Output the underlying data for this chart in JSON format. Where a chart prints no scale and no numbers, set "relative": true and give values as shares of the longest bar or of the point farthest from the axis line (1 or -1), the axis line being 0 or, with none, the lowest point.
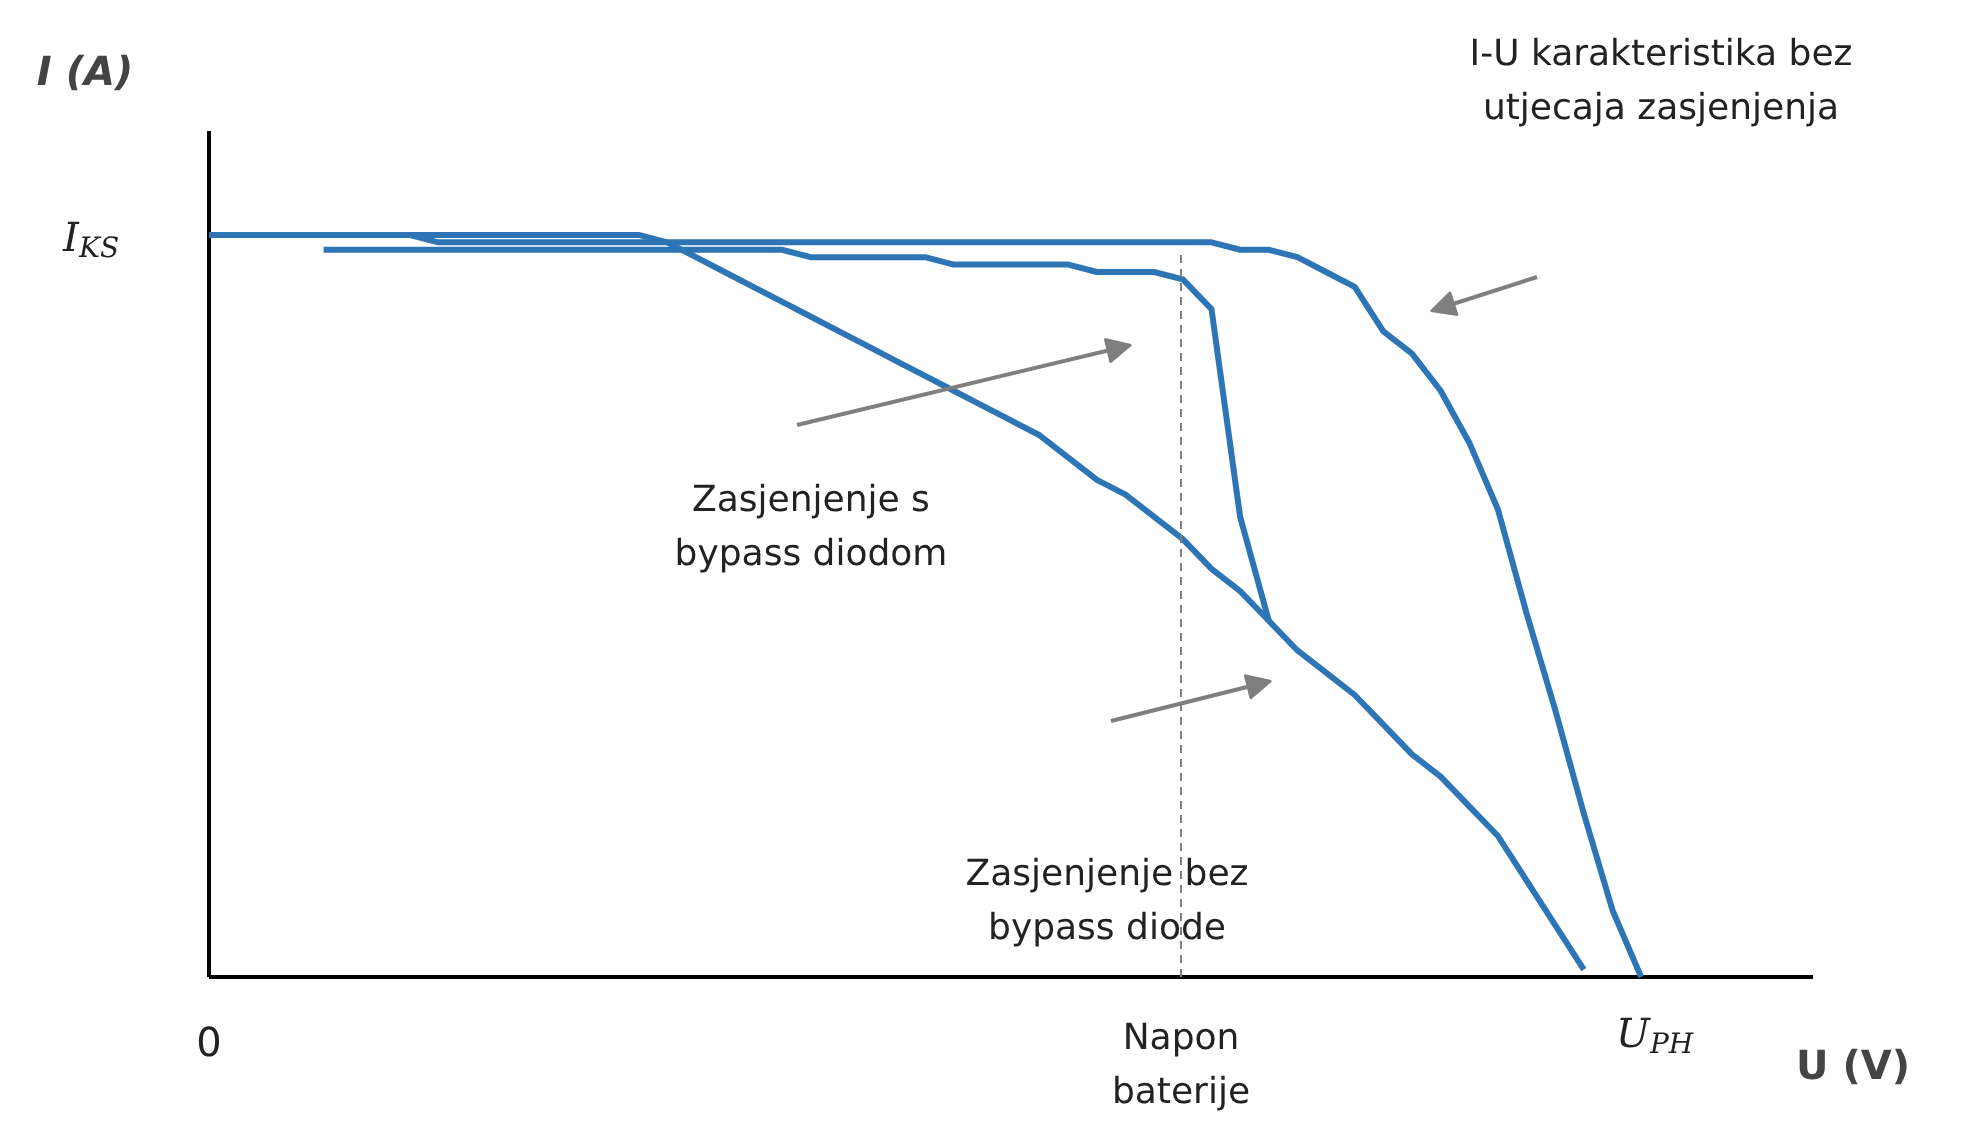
{
  "chart_data": {
    "type": "line",
    "relative": true,
    "xlabel": "U (V)",
    "ylabel": "I (A)",
    "categories": [
      null,
      null,
      null,
      null,
      null,
      null,
      null,
      null,
      null,
      null,
      null,
      null,
      null,
      null,
      null,
      null,
      null,
      null,
      null,
      null,
      null,
      null,
      null,
      null,
      null,
      null,
      null,
      null,
      null,
      null,
      null,
      null,
      null,
      null,
      null,
      null,
      null,
      null,
      null,
      null,
      null,
      null,
      null,
      null,
      null,
      null,
      null,
      null,
      null,
      null,
      null,
      null,
      null,
      null,
      null,
      null,
      null
    ],
    "series": [
      {
        "color": "#2e75b6",
        "values": [
          1,
          1,
          1,
          1,
          1,
          1,
          1,
          1,
          1,
          1,
          1,
          1,
          1,
          1,
          1,
          1,
          0.99,
          0.99,
          0.99,
          0.99,
          0.99,
          0.99,
          0.99,
          0.99,
          0.99,
          0.99,
          0.99,
          0.99,
          0.99,
          0.99,
          0.99,
          0.99,
          0.99,
          0.99,
          0.99,
          0.99,
          0.98,
          0.98,
          0.97,
          0.95,
          0.93,
          0.87,
          0.84,
          0.79,
          0.72,
          0.63,
          0.49,
          0.36,
          0.22,
          0.09,
          0,
          null,
          null,
          null,
          null,
          null,
          null
        ]
      },
      {
        "color": "#2e75b6",
        "values": [
          null,
          null,
          null,
          null,
          0.98,
          0.98,
          0.98,
          0.98,
          0.98,
          0.98,
          0.98,
          0.98,
          0.98,
          0.98,
          0.98,
          0.98,
          0.98,
          0.98,
          0.98,
          0.98,
          0.98,
          0.97,
          0.97,
          0.97,
          0.97,
          0.97,
          0.96,
          0.96,
          0.96,
          0.96,
          0.96,
          0.95,
          0.95,
          0.95,
          0.94,
          0.9,
          0.62,
          0.48,
          null,
          null,
          null,
          null,
          null,
          null,
          null,
          null,
          null,
          null,
          null,
          null,
          null,
          null,
          null,
          null,
          null,
          null,
          null
        ]
      },
      {
        "color": "#2e75b6",
        "values": [
          1,
          1,
          1,
          1,
          1,
          1,
          1,
          1,
          0.99,
          0.99,
          0.99,
          0.99,
          0.99,
          0.99,
          0.99,
          0.99,
          0.99,
          0.97,
          0.95,
          0.93,
          0.91,
          0.89,
          0.87,
          0.85,
          0.83,
          0.81,
          0.79,
          0.77,
          0.75,
          0.73,
          0.7,
          0.67,
          0.65,
          0.62,
          0.59,
          0.55,
          0.52,
          0.48,
          0.44,
          0.41,
          0.38,
          0.34,
          0.3,
          0.27,
          0.23,
          0.19,
          0.13,
          0.07,
          0.01,
          null,
          null,
          null,
          null,
          null,
          null,
          null,
          null
        ]
      }
    ],
    "annotations": [
      "I$_{KS}$",
      "0",
      "U$_{PH}$",
      "I-U karakteristika bez\nutjecaja zasjenjenja",
      "Zasjenjenje s\nbypass diodom",
      "Zasjenjenje bez\nbypass diode",
      "Napon\nbaterije"
    ],
    "grid": false
  }
}
